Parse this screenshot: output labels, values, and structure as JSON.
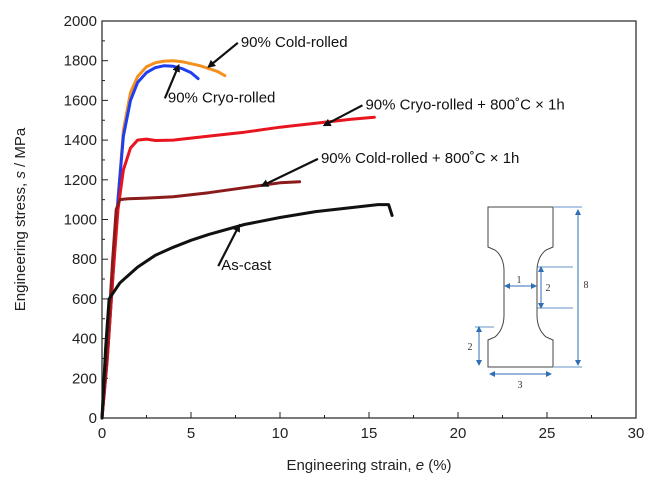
{
  "chart_data": {
    "type": "line",
    "xlabel_prefix": "Engineering strain, ",
    "xlabel_var": "e",
    "xlabel_suffix": " (%)",
    "ylabel_prefix": "Engineering stress, ",
    "ylabel_var": "s",
    "ylabel_suffix": " / MPa",
    "xlim": [
      0,
      30
    ],
    "ylim": [
      0,
      2000
    ],
    "xticks": [
      0,
      5,
      10,
      15,
      20,
      25,
      30
    ],
    "yticks": [
      0,
      200,
      400,
      600,
      800,
      1000,
      1200,
      1400,
      1600,
      1800,
      2000
    ],
    "grid": false,
    "series": [
      {
        "name": "90% Cold-rolled",
        "color": "#f5901e",
        "points": [
          [
            0,
            0
          ],
          [
            0.3,
            300
          ],
          [
            0.6,
            700
          ],
          [
            0.9,
            1100
          ],
          [
            1.2,
            1450
          ],
          [
            1.6,
            1640
          ],
          [
            2.0,
            1720
          ],
          [
            2.5,
            1770
          ],
          [
            3.0,
            1790
          ],
          [
            3.5,
            1798
          ],
          [
            4.0,
            1800
          ],
          [
            4.5,
            1795
          ],
          [
            5.0,
            1785
          ],
          [
            5.5,
            1775
          ],
          [
            6.0,
            1760
          ],
          [
            6.5,
            1745
          ],
          [
            6.9,
            1725
          ]
        ]
      },
      {
        "name": "90% Cryo-rolled",
        "color": "#1e3ef0",
        "points": [
          [
            0,
            0
          ],
          [
            0.3,
            300
          ],
          [
            0.6,
            700
          ],
          [
            0.9,
            1100
          ],
          [
            1.2,
            1420
          ],
          [
            1.6,
            1600
          ],
          [
            2.0,
            1690
          ],
          [
            2.5,
            1740
          ],
          [
            3.0,
            1765
          ],
          [
            3.5,
            1775
          ],
          [
            4.0,
            1772
          ],
          [
            4.5,
            1760
          ],
          [
            5.0,
            1740
          ],
          [
            5.4,
            1710
          ]
        ]
      },
      {
        "name": "90% Cryo-rolled + 800˚C × 1h",
        "color": "#e8141e",
        "points": [
          [
            0,
            0
          ],
          [
            0.3,
            300
          ],
          [
            0.6,
            700
          ],
          [
            0.9,
            1050
          ],
          [
            1.2,
            1250
          ],
          [
            1.6,
            1360
          ],
          [
            2.0,
            1400
          ],
          [
            2.5,
            1405
          ],
          [
            3.0,
            1398
          ],
          [
            4.0,
            1400
          ],
          [
            6.0,
            1420
          ],
          [
            8.0,
            1440
          ],
          [
            10.0,
            1465
          ],
          [
            12.0,
            1485
          ],
          [
            14.0,
            1505
          ],
          [
            15.3,
            1515
          ]
        ]
      },
      {
        "name": "90% Cold-rolled + 800˚C × 1h",
        "color": "#8b1a1a",
        "points": [
          [
            0,
            0
          ],
          [
            0.3,
            350
          ],
          [
            0.6,
            800
          ],
          [
            0.8,
            1050
          ],
          [
            1.0,
            1100
          ],
          [
            1.5,
            1105
          ],
          [
            2.5,
            1108
          ],
          [
            4.0,
            1115
          ],
          [
            6.0,
            1135
          ],
          [
            8.0,
            1160
          ],
          [
            10.0,
            1185
          ],
          [
            11.1,
            1190
          ]
        ]
      },
      {
        "name": "As-cast",
        "color": "#111111",
        "points": [
          [
            0,
            0
          ],
          [
            0.2,
            350
          ],
          [
            0.4,
            600
          ],
          [
            1.0,
            680
          ],
          [
            2.0,
            760
          ],
          [
            3.0,
            820
          ],
          [
            4.0,
            860
          ],
          [
            5.0,
            895
          ],
          [
            6.0,
            925
          ],
          [
            8.0,
            975
          ],
          [
            10.0,
            1010
          ],
          [
            12.0,
            1040
          ],
          [
            14.0,
            1060
          ],
          [
            15.5,
            1075
          ],
          [
            16.1,
            1075
          ],
          [
            16.3,
            1020
          ]
        ]
      }
    ],
    "annotations": [
      {
        "text": "90% Cold-rolled",
        "arrow_to": [
          6.0,
          1770
        ],
        "text_at": [
          7.8,
          1870
        ],
        "series": 0
      },
      {
        "text": "90% Cryo-rolled",
        "arrow_to": [
          4.3,
          1775
        ],
        "text_at": [
          3.7,
          1590
        ],
        "series": 1
      },
      {
        "text": "90% Cryo-rolled + 800˚C × 1h",
        "arrow_to": [
          12.5,
          1475
        ],
        "text_at": [
          14.8,
          1555
        ],
        "series": 2
      },
      {
        "text": "90% Cold-rolled + 800˚C × 1h",
        "arrow_to": [
          9.0,
          1170
        ],
        "text_at": [
          12.3,
          1285
        ],
        "series": 3
      },
      {
        "text": "As-cast",
        "arrow_to": [
          7.7,
          970
        ],
        "text_at": [
          6.7,
          745
        ],
        "series": 4
      }
    ],
    "inset_dimensions": [
      "1",
      "2",
      "8",
      "2",
      "3"
    ]
  }
}
